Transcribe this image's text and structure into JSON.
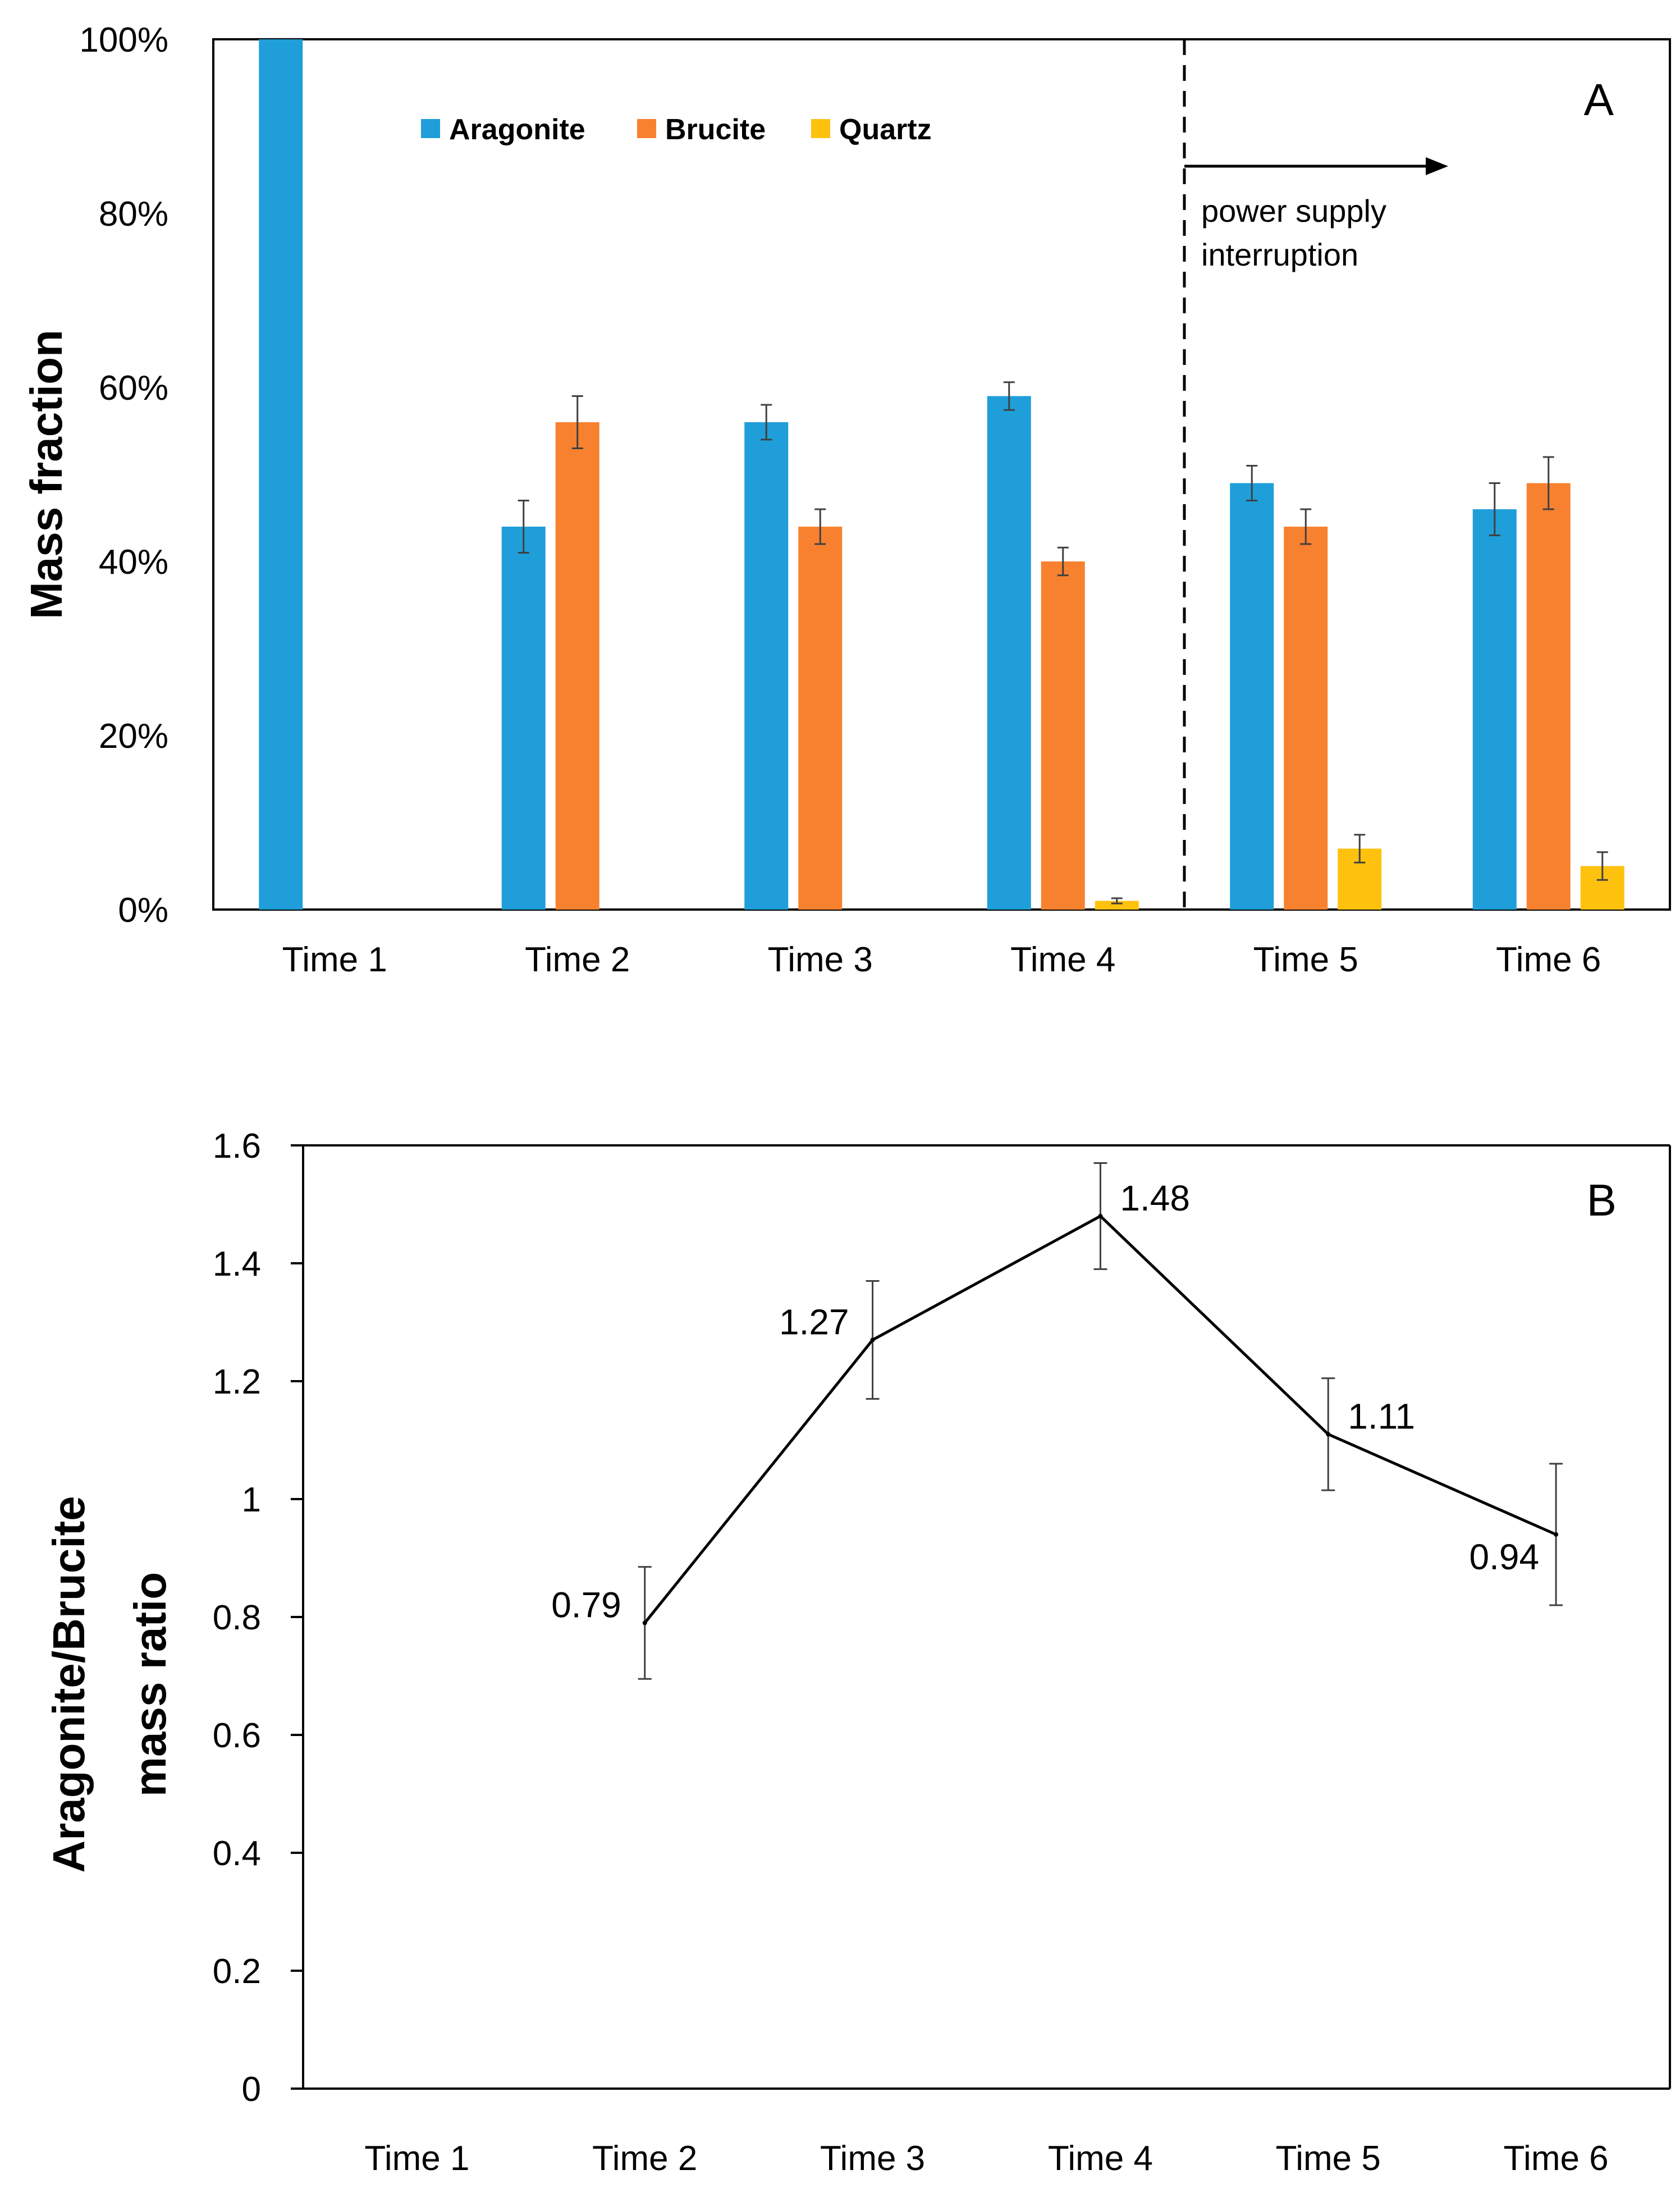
{
  "chart_data": [
    {
      "panel": "A",
      "type": "bar",
      "panel_label": "A",
      "title": "",
      "xlabel": "",
      "ylabel": "Mass fraction",
      "ylim": [
        0,
        100
      ],
      "yticks": [
        {
          "value": 0,
          "label": "0%"
        },
        {
          "value": 20,
          "label": "20%"
        },
        {
          "value": 40,
          "label": "40%"
        },
        {
          "value": 60,
          "label": "60%"
        },
        {
          "value": 80,
          "label": "80%"
        },
        {
          "value": 100,
          "label": "100%"
        }
      ],
      "categories": [
        "Time 1",
        "Time 2",
        "Time 3",
        "Time 4",
        "Time 5",
        "Time 6"
      ],
      "legend_position": "top-left",
      "series": [
        {
          "name": "Aragonite",
          "color": "#1f9ed9",
          "values": [
            100,
            44,
            56,
            59,
            49,
            46
          ],
          "errors": [
            null,
            3,
            2,
            1.6,
            2,
            3
          ]
        },
        {
          "name": "Brucite",
          "color": "#f8812f",
          "values": [
            null,
            56,
            44,
            40,
            44,
            49
          ],
          "errors": [
            null,
            3,
            2,
            1.6,
            2,
            3
          ]
        },
        {
          "name": "Quartz",
          "color": "#fec10e",
          "values": [
            null,
            null,
            null,
            1,
            7,
            5
          ],
          "errors": [
            null,
            null,
            null,
            0.3,
            1.6,
            1.6
          ]
        }
      ],
      "annotations": [
        {
          "text_lines": [
            "power supply",
            "interruption"
          ],
          "after_category_index": 3,
          "style": "dashed-divider-with-right-arrow"
        }
      ]
    },
    {
      "panel": "B",
      "type": "line",
      "panel_label": "B",
      "title": "",
      "xlabel": "",
      "ylabel_lines": [
        "Aragonite/Brucite",
        "mass ratio"
      ],
      "ylim": [
        0,
        1.6
      ],
      "yticks": [
        {
          "value": 0,
          "label": "0"
        },
        {
          "value": 0.2,
          "label": "0.2"
        },
        {
          "value": 0.4,
          "label": "0.4"
        },
        {
          "value": 0.6,
          "label": "0.6"
        },
        {
          "value": 0.8,
          "label": "0.8"
        },
        {
          "value": 1.0,
          "label": "1"
        },
        {
          "value": 1.2,
          "label": "1.2"
        },
        {
          "value": 1.4,
          "label": "1.4"
        },
        {
          "value": 1.6,
          "label": "1.6"
        }
      ],
      "categories": [
        "Time 1",
        "Time 2",
        "Time 3",
        "Time 4",
        "Time 5",
        "Time 6"
      ],
      "series": [
        {
          "name": "Aragonite/Brucite mass ratio",
          "color": "#000000",
          "values": [
            null,
            0.79,
            1.27,
            1.48,
            1.11,
            0.94
          ],
          "errors": [
            null,
            0.095,
            0.1,
            0.09,
            0.095,
            0.12
          ],
          "labels": [
            null,
            "0.79",
            "1.27",
            "1.48",
            "1.11",
            "0.94"
          ],
          "label_sides": [
            null,
            "left",
            "left",
            "right",
            "right",
            "left-below"
          ]
        }
      ]
    }
  ]
}
